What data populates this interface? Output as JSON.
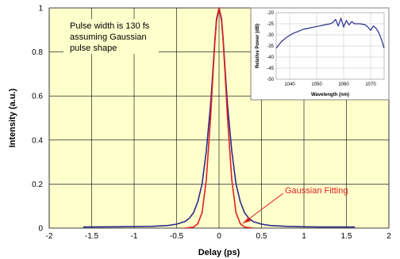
{
  "chart_data": [
    {
      "type": "line",
      "xlabel": "Delay (ps)",
      "ylabel": "Intensity (a.u.)",
      "xlim": [
        -2,
        2
      ],
      "ylim": [
        0,
        1
      ],
      "xticks": [
        "-2",
        "-1.5",
        "-1",
        "-0.5",
        "0",
        "0.5",
        "1",
        "1.5",
        "2"
      ],
      "yticks": [
        "0",
        "0.2",
        "0.4",
        "0.6",
        "0.8",
        "1"
      ],
      "grid": true,
      "annotations": {
        "note_line1": "Pulse width is 130 fs",
        "note_line2": "assuming Gaussian",
        "note_line3": "pulse shape",
        "fit_label": "Gaussian Fitting"
      },
      "series": [
        {
          "color": "#2b2b8c",
          "x": [
            -1.6,
            -1.2,
            -0.8,
            -0.6,
            -0.5,
            -0.4,
            -0.35,
            -0.3,
            -0.25,
            -0.2,
            -0.15,
            -0.1,
            -0.08,
            -0.05,
            -0.03,
            0,
            0.03,
            0.05,
            0.08,
            0.1,
            0.15,
            0.2,
            0.25,
            0.3,
            0.35,
            0.4,
            0.5,
            0.6,
            0.8,
            1.0,
            1.2,
            1.6
          ],
          "y": [
            0.005,
            0.006,
            0.008,
            0.012,
            0.018,
            0.03,
            0.045,
            0.07,
            0.12,
            0.2,
            0.35,
            0.56,
            0.67,
            0.85,
            0.95,
            1.0,
            0.95,
            0.85,
            0.67,
            0.56,
            0.35,
            0.2,
            0.12,
            0.07,
            0.045,
            0.03,
            0.018,
            0.012,
            0.008,
            0.006,
            0.005,
            0.005
          ]
        },
        {
          "color": "#e02020",
          "x": [
            -0.4,
            -0.3,
            -0.25,
            -0.2,
            -0.15,
            -0.1,
            -0.08,
            -0.05,
            -0.03,
            0,
            0.03,
            0.05,
            0.08,
            0.1,
            0.15,
            0.2,
            0.25,
            0.3,
            0.4
          ],
          "y": [
            0,
            0.005,
            0.02,
            0.07,
            0.22,
            0.5,
            0.64,
            0.84,
            0.94,
            1.0,
            0.94,
            0.84,
            0.64,
            0.5,
            0.22,
            0.07,
            0.02,
            0.005,
            0
          ]
        }
      ]
    },
    {
      "type": "line",
      "xlabel": "Wavelength (nm)",
      "ylabel": "Relative Power (dB)",
      "xlim": [
        1035,
        1075
      ],
      "ylim": [
        -50,
        -20
      ],
      "xticks": [
        "1040",
        "1050",
        "1060",
        "1070"
      ],
      "yticks": [
        "-20",
        "-25",
        "-30",
        "-35",
        "-40",
        "-45",
        "-50"
      ],
      "grid": true,
      "series": [
        {
          "color": "#2b2b8c",
          "x": [
            1035,
            1037,
            1039,
            1041,
            1043,
            1045,
            1047,
            1049,
            1051,
            1053,
            1055,
            1056,
            1057,
            1058,
            1059,
            1060,
            1061,
            1062,
            1063,
            1064,
            1066,
            1068,
            1069,
            1070,
            1071,
            1072,
            1073,
            1074,
            1075
          ],
          "y": [
            -36,
            -33,
            -31,
            -29.5,
            -28.5,
            -27.5,
            -27,
            -26.5,
            -26,
            -25.5,
            -25,
            -24.5,
            -23,
            -26,
            -22.5,
            -26.5,
            -23.5,
            -25.5,
            -24,
            -25,
            -25,
            -25.5,
            -26.5,
            -28,
            -26,
            -27,
            -29,
            -32,
            -36
          ]
        }
      ]
    }
  ]
}
